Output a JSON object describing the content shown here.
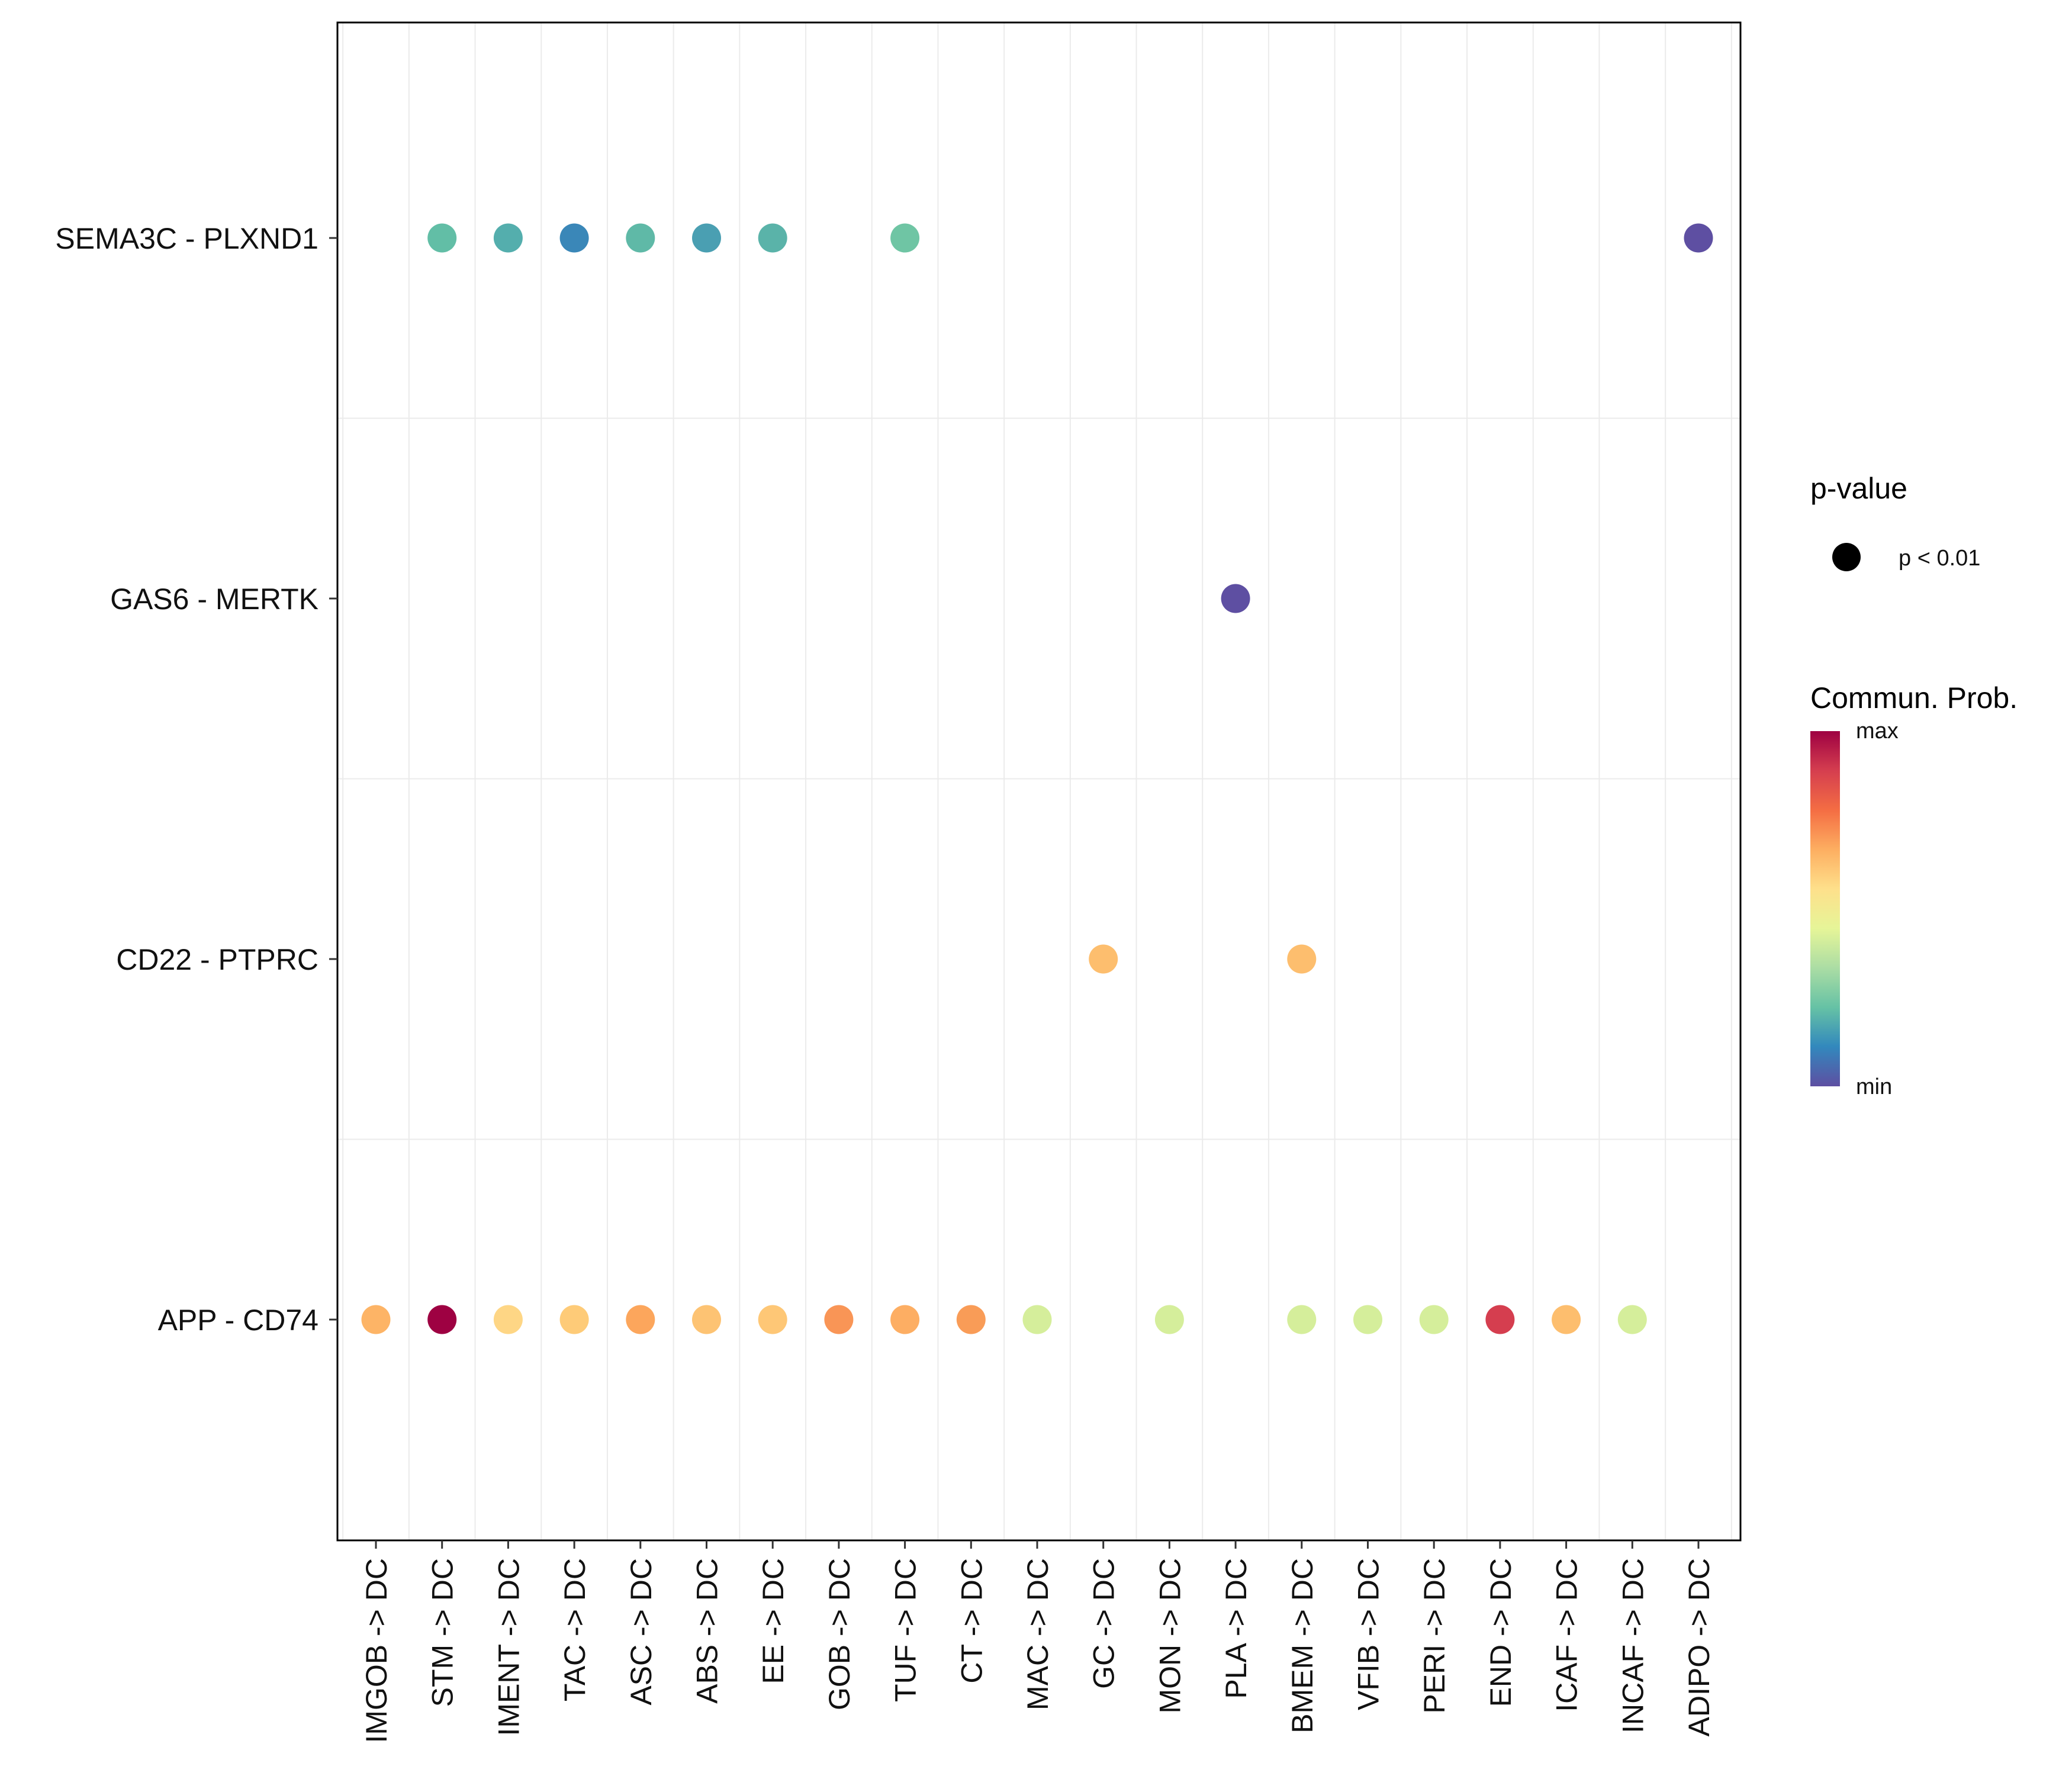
{
  "chart_data": {
    "type": "dot",
    "title": "",
    "xlabel": "",
    "ylabel": "",
    "x_categories": [
      "IMGOB -> DC",
      "STM -> DC",
      "IMENT -> DC",
      "TAC -> DC",
      "ASC -> DC",
      "ABS -> DC",
      "EE -> DC",
      "GOB -> DC",
      "TUF -> DC",
      "CT -> DC",
      "MAC -> DC",
      "GC -> DC",
      "MON -> DC",
      "PLA -> DC",
      "BMEM -> DC",
      "VFIB -> DC",
      "PERI -> DC",
      "END -> DC",
      "ICAF -> DC",
      "INCAF -> DC",
      "ADIPO -> DC"
    ],
    "y_categories": [
      "SEMA3C - PLXND1",
      "GAS6 - MERTK",
      "CD22 - PTPRC",
      "APP - CD74"
    ],
    "points": [
      {
        "x": "STM -> DC",
        "y": "SEMA3C - PLXND1",
        "color": "#62BEA6"
      },
      {
        "x": "IMENT -> DC",
        "y": "SEMA3C - PLXND1",
        "color": "#54AEAD"
      },
      {
        "x": "TAC -> DC",
        "y": "SEMA3C - PLXND1",
        "color": "#3A87B8"
      },
      {
        "x": "ASC -> DC",
        "y": "SEMA3C - PLXND1",
        "color": "#5FB9A7"
      },
      {
        "x": "ABS -> DC",
        "y": "SEMA3C - PLXND1",
        "color": "#4A9FB2"
      },
      {
        "x": "EE -> DC",
        "y": "SEMA3C - PLXND1",
        "color": "#5AB3A9"
      },
      {
        "x": "TUF -> DC",
        "y": "SEMA3C - PLXND1",
        "color": "#6FC5A4"
      },
      {
        "x": "ADIPO -> DC",
        "y": "SEMA3C - PLXND1",
        "color": "#5E4FA2"
      },
      {
        "x": "PLA -> DC",
        "y": "GAS6 - MERTK",
        "color": "#5E4FA2"
      },
      {
        "x": "GC -> DC",
        "y": "CD22 - PTPRC",
        "color": "#FDBE6E"
      },
      {
        "x": "BMEM -> DC",
        "y": "CD22 - PTPRC",
        "color": "#FDBE6E"
      },
      {
        "x": "IMGOB -> DC",
        "y": "APP - CD74",
        "color": "#FDB466"
      },
      {
        "x": "STM -> DC",
        "y": "APP - CD74",
        "color": "#9E0142"
      },
      {
        "x": "IMENT -> DC",
        "y": "APP - CD74",
        "color": "#FED685"
      },
      {
        "x": "TAC -> DC",
        "y": "APP - CD74",
        "color": "#FECB78"
      },
      {
        "x": "ASC -> DC",
        "y": "APP - CD74",
        "color": "#FCA65C"
      },
      {
        "x": "ABS -> DC",
        "y": "APP - CD74",
        "color": "#FDC373"
      },
      {
        "x": "EE -> DC",
        "y": "APP - CD74",
        "color": "#FEC776"
      },
      {
        "x": "GOB -> DC",
        "y": "APP - CD74",
        "color": "#F99556"
      },
      {
        "x": "TUF -> DC",
        "y": "APP - CD74",
        "color": "#FDAE63"
      },
      {
        "x": "CT -> DC",
        "y": "APP - CD74",
        "color": "#F99C57"
      },
      {
        "x": "MAC -> DC",
        "y": "APP - CD74",
        "color": "#D5EE9B"
      },
      {
        "x": "MON -> DC",
        "y": "APP - CD74",
        "color": "#D5EE9B"
      },
      {
        "x": "BMEM -> DC",
        "y": "APP - CD74",
        "color": "#D5EE9B"
      },
      {
        "x": "VFIB -> DC",
        "y": "APP - CD74",
        "color": "#D5EE9B"
      },
      {
        "x": "PERI -> DC",
        "y": "APP - CD74",
        "color": "#D5EE9B"
      },
      {
        "x": "END -> DC",
        "y": "APP - CD74",
        "color": "#D53E4F"
      },
      {
        "x": "ICAF -> DC",
        "y": "APP - CD74",
        "color": "#FDBE6E"
      },
      {
        "x": "INCAF -> DC",
        "y": "APP - CD74",
        "color": "#D5EE9B"
      }
    ],
    "legend": {
      "size_title": "p-value",
      "size_label": "p < 0.01",
      "color_title": "Commun. Prob.",
      "color_max": "max",
      "color_min": "min",
      "palette": [
        "#9E0142",
        "#D53E4F",
        "#F46D43",
        "#FDAE61",
        "#FEE08B",
        "#E6F598",
        "#ABDDA4",
        "#66C2A5",
        "#3288BD",
        "#5E4FA2"
      ]
    },
    "grid": true
  }
}
